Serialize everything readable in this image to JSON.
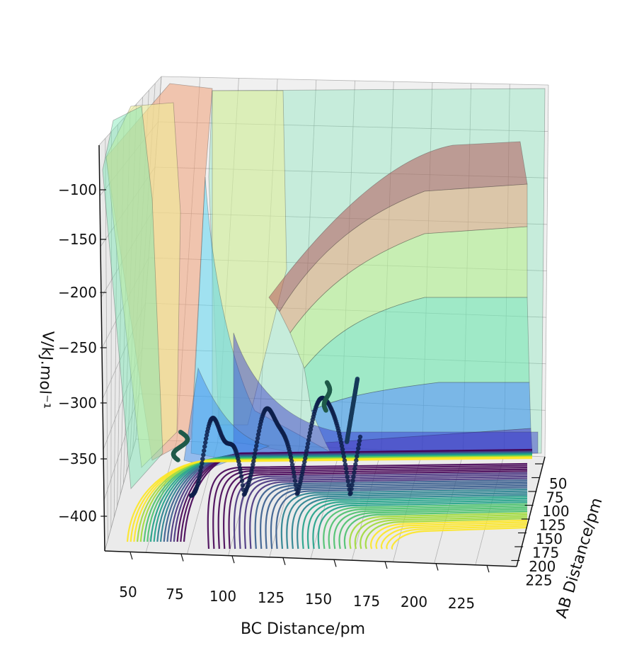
{
  "chart_data": {
    "type": "surface3d",
    "title": "",
    "xlabel": "BC Distance/pm",
    "ylabel": "AB Distance/pm",
    "zlabel": "V/kJ.mol$^{-1}$",
    "zlabel_display": "V/kJ.mol⁻¹",
    "x_ticks": [
      "50",
      "75",
      "100",
      "125",
      "150",
      "175",
      "200",
      "225"
    ],
    "y_ticks": [
      "50",
      "75",
      "100",
      "125",
      "150",
      "175",
      "200",
      "225"
    ],
    "z_ticks": [
      "−100",
      "−150",
      "−200",
      "−250",
      "−300",
      "−350",
      "−400"
    ],
    "x_range": [
      40,
      250
    ],
    "y_range": [
      40,
      250
    ],
    "z_range": [
      -430,
      -70
    ],
    "grid": true,
    "colormap": "viridis",
    "surface_colors": [
      "#3030c8",
      "#3c8cf0",
      "#50d2f0",
      "#78e6b4",
      "#c8f08c",
      "#f0f096",
      "#f0a078",
      "#b45a5a"
    ],
    "trajectory_color": "#0d1f4a"
  }
}
